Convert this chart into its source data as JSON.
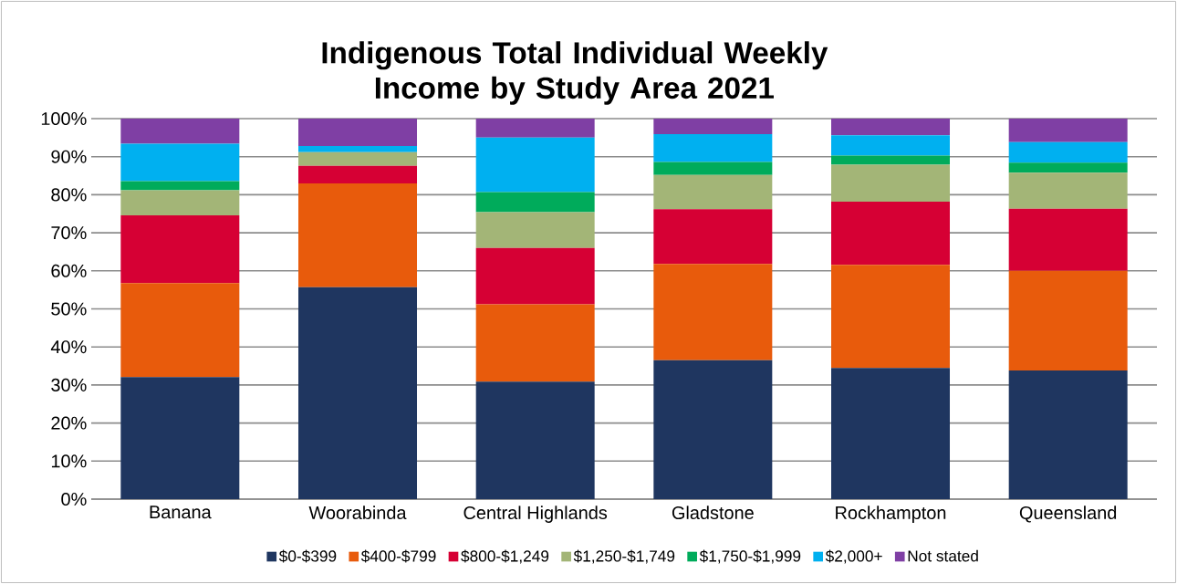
{
  "chart_data": {
    "type": "bar",
    "stacked": true,
    "title": "Indigenous Total Individual Weekly Income by Study Area 2021",
    "categories": [
      "Banana",
      "Woorabinda",
      "Central Highlands",
      "Gladstone",
      "Rockhampton",
      "Queensland"
    ],
    "series": [
      {
        "name": "$0-$399",
        "color": "#1f3660",
        "values": [
          32.1,
          55.7,
          30.9,
          36.5,
          34.5,
          33.8
        ]
      },
      {
        "name": "$400-$799",
        "color": "#e85b0c",
        "values": [
          24.7,
          27.3,
          20.3,
          25.3,
          27.1,
          26.2
        ]
      },
      {
        "name": "$800-$1,249",
        "color": "#d60034",
        "values": [
          17.8,
          4.6,
          14.8,
          14.4,
          16.6,
          16.3
        ]
      },
      {
        "name": "$1,250-$1,749",
        "color": "#a3b577",
        "values": [
          6.6,
          3.6,
          9.4,
          9.0,
          9.7,
          9.5
        ]
      },
      {
        "name": "$1,750-$1,999",
        "color": "#00ab5b",
        "values": [
          2.4,
          0,
          5.3,
          3.4,
          2.4,
          2.6
        ]
      },
      {
        "name": "$2,000+",
        "color": "#00b0f0",
        "values": [
          9.8,
          1.6,
          14.3,
          7.3,
          5.3,
          5.4
        ]
      },
      {
        "name": "Not stated",
        "color": "#7f3fa4",
        "values": [
          6.6,
          7.2,
          5.0,
          4.1,
          4.4,
          6.2
        ]
      }
    ],
    "ylim": [
      0,
      100
    ],
    "yticks": [
      {
        "value": 0,
        "label": "0%"
      },
      {
        "value": 10,
        "label": "10%"
      },
      {
        "value": 20,
        "label": "20%"
      },
      {
        "value": 30,
        "label": "30%"
      },
      {
        "value": 40,
        "label": "40%"
      },
      {
        "value": 50,
        "label": "50%"
      },
      {
        "value": 60,
        "label": "60%"
      },
      {
        "value": 70,
        "label": "70%"
      },
      {
        "value": 80,
        "label": "80%"
      },
      {
        "value": 90,
        "label": "90%"
      },
      {
        "value": 100,
        "label": "100%"
      }
    ],
    "grid": "y",
    "legend": "bottom"
  }
}
